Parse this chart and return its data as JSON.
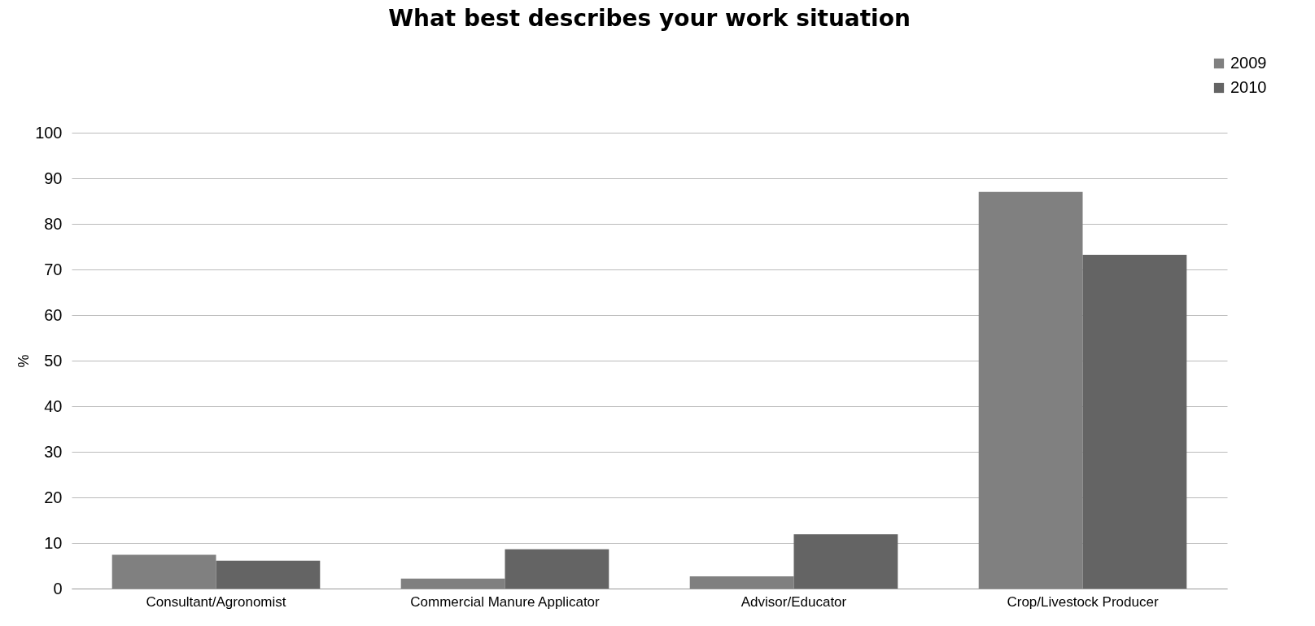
{
  "chart_data": {
    "type": "bar",
    "title": "What best describes your work situation",
    "ylabel": "%",
    "categories": [
      "Consultant/Agronomist",
      "Commercial Manure Applicator",
      "Advisor/Educator",
      "Crop/Livestock Producer"
    ],
    "series": [
      {
        "name": "2009",
        "color": "#808080",
        "values": [
          7.4,
          2.2,
          2.7,
          87
        ]
      },
      {
        "name": "2010",
        "color": "#646464",
        "values": [
          6.1,
          8.6,
          11.9,
          73.2
        ]
      }
    ],
    "ylim": [
      0,
      100
    ],
    "yticks": [
      0,
      10,
      20,
      30,
      40,
      50,
      60,
      70,
      80,
      90,
      100
    ],
    "grid": "y",
    "legend": "top right"
  }
}
